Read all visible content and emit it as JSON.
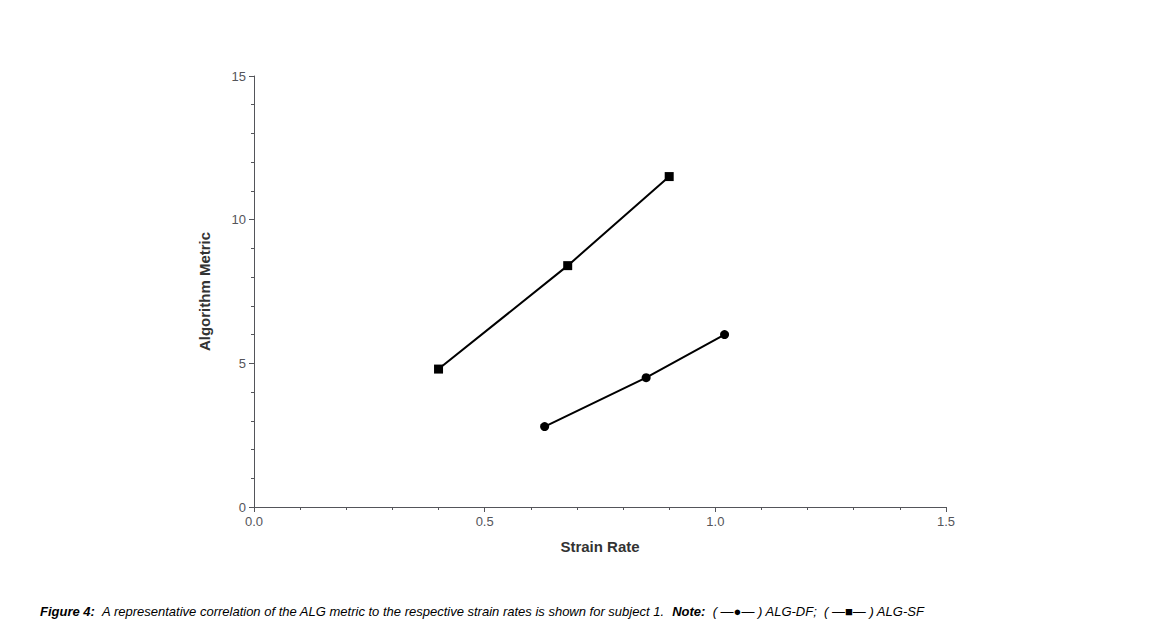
{
  "chart_data": {
    "type": "line",
    "x_label": "Strain Rate",
    "y_label": "Algorithm Metric",
    "series": [
      {
        "name": "ALG-DF",
        "color": "#000000",
        "marker": "circle",
        "line_style": "solid",
        "x": [
          0.63,
          0.85,
          1.02
        ],
        "values": [
          2.8,
          4.5,
          6.0
        ]
      },
      {
        "name": "ALG-SF",
        "color": "#000000",
        "marker": "square",
        "line_style": "solid",
        "x": [
          0.4,
          0.68,
          0.9
        ],
        "values": [
          4.8,
          8.4,
          11.5
        ]
      }
    ],
    "xlim": [
      0.0,
      1.5
    ],
    "ylim": [
      0,
      15
    ],
    "xticks": [
      {
        "value": 0.0,
        "label": "0.0"
      },
      {
        "value": 0.5,
        "label": "0.5"
      },
      {
        "value": 1.0,
        "label": "1.0"
      },
      {
        "value": 1.5,
        "label": "1.5"
      }
    ],
    "yticks": [
      0,
      5,
      10,
      15
    ],
    "grid": false,
    "annotations": [
      "Figure 4:",
      "A representative correlation of the ALG metric to the respective strain rates is shown for subject 1.",
      "Note:",
      "( —●— ) ALG-DF;  ( —■— ) ALG-SF"
    ]
  }
}
